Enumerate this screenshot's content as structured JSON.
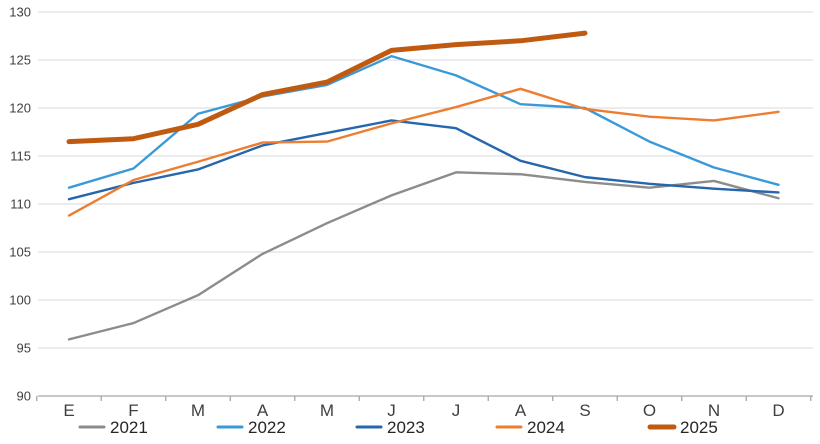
{
  "chart_data": {
    "type": "line",
    "title": "",
    "xlabel": "",
    "ylabel": "",
    "categories": [
      "E",
      "F",
      "M",
      "A",
      "M",
      "J",
      "J",
      "A",
      "S",
      "O",
      "N",
      "D"
    ],
    "series": [
      {
        "name": "2021",
        "color": "#8C8C8C",
        "stroke_width": 2.4,
        "values": [
          95.9,
          97.6,
          100.5,
          104.8,
          108.0,
          110.9,
          113.3,
          113.1,
          112.3,
          111.7,
          112.4,
          110.6
        ]
      },
      {
        "name": "2022",
        "color": "#3A9AD9",
        "stroke_width": 2.4,
        "values": [
          111.7,
          113.7,
          119.4,
          121.2,
          122.4,
          125.4,
          123.4,
          120.4,
          120.0,
          116.5,
          113.8,
          112.0
        ]
      },
      {
        "name": "2023",
        "color": "#2566AD",
        "stroke_width": 2.4,
        "values": [
          110.5,
          112.2,
          113.6,
          116.1,
          117.4,
          118.7,
          117.9,
          114.5,
          112.8,
          112.1,
          111.6,
          111.2
        ]
      },
      {
        "name": "2024",
        "color": "#ED7D31",
        "stroke_width": 2.4,
        "values": [
          108.8,
          112.5,
          114.4,
          116.4,
          116.5,
          118.4,
          120.1,
          122.0,
          119.9,
          119.1,
          118.7,
          119.6
        ]
      },
      {
        "name": "2025",
        "color": "#C05A11",
        "stroke_width": 5,
        "values": [
          116.5,
          116.8,
          118.3,
          121.4,
          122.7,
          126.0,
          126.6,
          127.0,
          127.8
        ]
      }
    ],
    "ylim": [
      90,
      130
    ],
    "ytick_step": 5,
    "ytick_labels": [
      "90",
      "95",
      "100",
      "105",
      "110",
      "115",
      "120",
      "125",
      "130"
    ],
    "grid": "horizontal",
    "legend_position": "bottom",
    "legend_labels": [
      "2021",
      "2022",
      "2023",
      "2024",
      "2025"
    ],
    "colors": {
      "gridline": "#D9D9D9",
      "axis_line": "#A6A6A6",
      "tick_mark": "#A6A6A6",
      "axis_text": "#3F3F3F",
      "legend_text": "#262626",
      "background": "#FFFFFF"
    }
  }
}
